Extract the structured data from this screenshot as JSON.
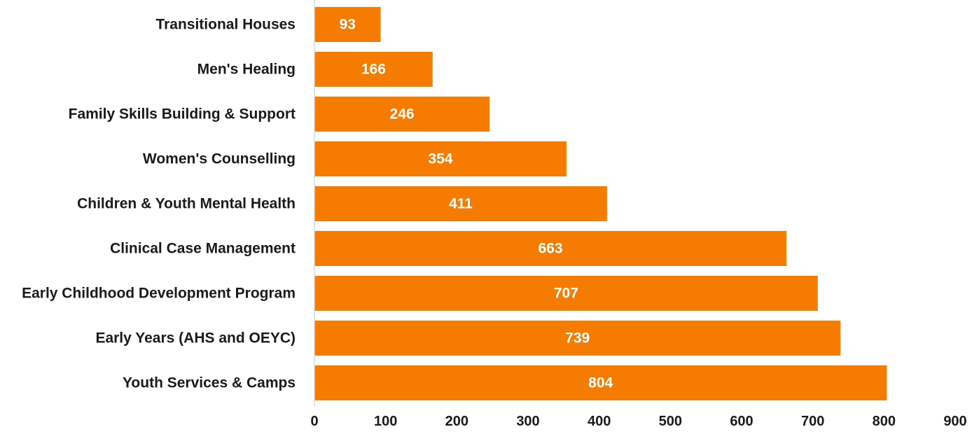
{
  "chart_data": {
    "type": "bar",
    "orientation": "horizontal",
    "title": "",
    "xlabel": "",
    "ylabel": "",
    "categories": [
      "Transitional Houses",
      "Men's Healing",
      "Family Skills Building & Support",
      "Women's Counselling",
      "Children & Youth Mental Health",
      "Clinical Case Management",
      "Early Childhood Development Program",
      "Early Years (AHS and OEYC)",
      "Youth Services & Camps"
    ],
    "values": [
      93,
      166,
      246,
      354,
      411,
      663,
      707,
      739,
      804
    ],
    "xlim": [
      0,
      900
    ],
    "xticks": [
      0,
      100,
      200,
      300,
      400,
      500,
      600,
      700,
      800,
      900
    ],
    "grid": false,
    "legend": "none",
    "data_labels": true,
    "colors": {
      "bar": "#F57C00",
      "data_label": "#ffffff",
      "text": "#1a1a1a"
    }
  }
}
